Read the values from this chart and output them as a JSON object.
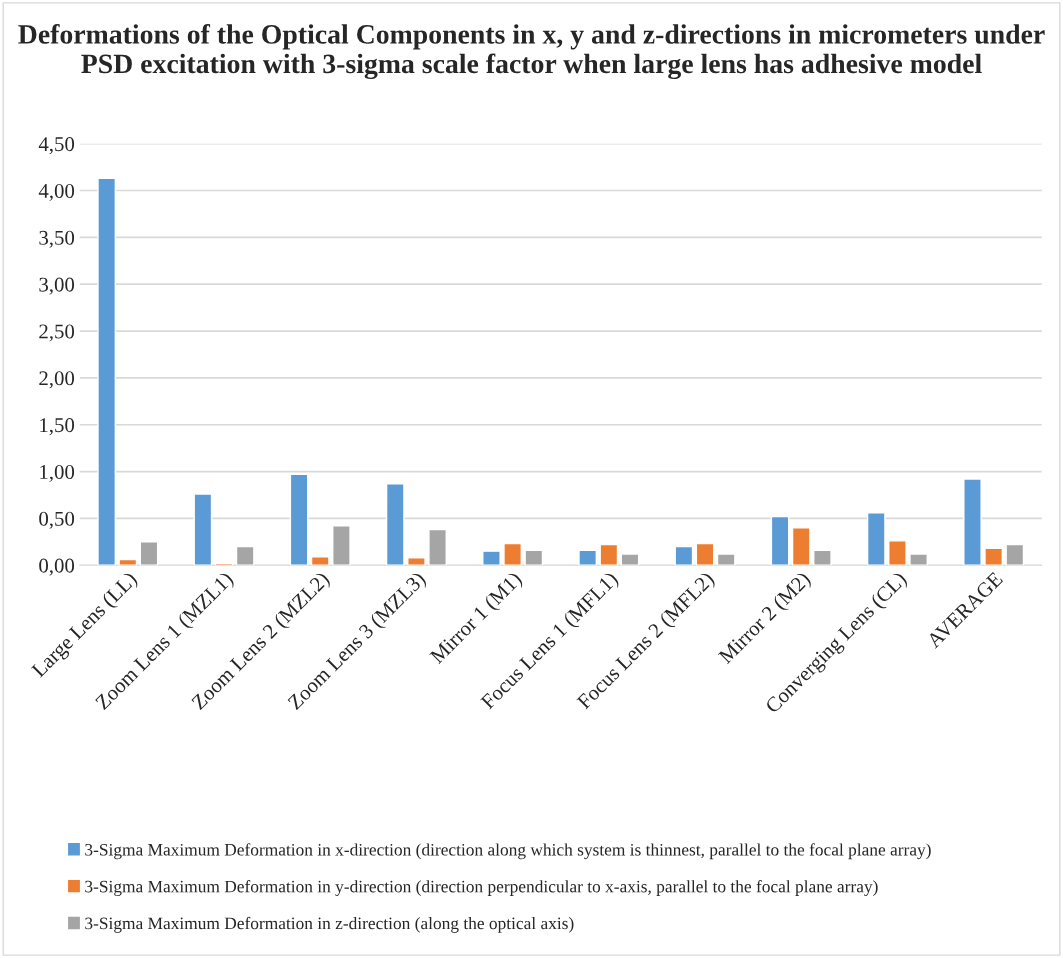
{
  "chart_data": {
    "type": "bar",
    "title": "Deformations of the Optical Components in x, y and z-directions in micrometers under PSD excitation with 3-sigma scale factor when large lens has adhesive model",
    "categories": [
      "Large Lens (LL)",
      "Zoom Lens 1 (MZL1)",
      "Zoom Lens 2 (MZL2)",
      "Zoom Lens 3 (MZL3)",
      "Mirror 1 (M1)",
      "Focus Lens 1 (MFL1)",
      "Focus Lens 2 (MFL2)",
      "Mirror 2 (M2)",
      "Converging Lens (CL)",
      "AVERAGE"
    ],
    "series": [
      {
        "name": "3-Sigma Maximum Deformation in x-direction (direction along which system is thinnest, parallel to the focal plane array)",
        "color": "#5b9bd5",
        "values": [
          4.13,
          0.76,
          0.97,
          0.87,
          0.15,
          0.16,
          0.2,
          0.52,
          0.56,
          0.92
        ]
      },
      {
        "name": "3-Sigma Maximum Deformation in y-direction (direction perpendicular to x-axis, parallel to the focal plane array)",
        "color": "#ed7d31",
        "values": [
          0.06,
          0.02,
          0.09,
          0.08,
          0.23,
          0.22,
          0.23,
          0.4,
          0.26,
          0.18
        ]
      },
      {
        "name": "3-Sigma Maximum Deformation in z-direction (along the optical axis)",
        "color": "#a5a5a5",
        "values": [
          0.25,
          0.2,
          0.42,
          0.38,
          0.16,
          0.12,
          0.12,
          0.16,
          0.12,
          0.22
        ]
      }
    ],
    "ylim": [
      0,
      4.5
    ],
    "yticks": [
      {
        "value": 0,
        "label": "0,00"
      },
      {
        "value": 0.5,
        "label": "0,50"
      },
      {
        "value": 1,
        "label": "1,00"
      },
      {
        "value": 1.5,
        "label": "1,50"
      },
      {
        "value": 2,
        "label": "2,00"
      },
      {
        "value": 2.5,
        "label": "2,50"
      },
      {
        "value": 3,
        "label": "3,00"
      },
      {
        "value": 3.5,
        "label": "3,50"
      },
      {
        "value": 4,
        "label": "4,00"
      },
      {
        "value": 4.5,
        "label": "4,50"
      }
    ],
    "grid": "y",
    "legend": "bottom"
  }
}
